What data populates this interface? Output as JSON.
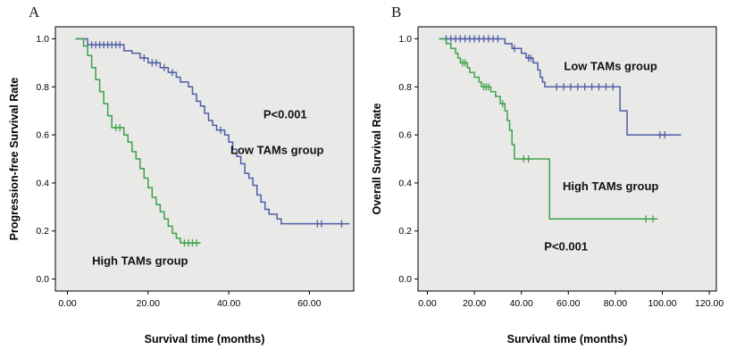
{
  "figure": {
    "description": "Kaplan-Meier survival curves comparing Low and High TAMs groups",
    "plot_background": "#e9e9e7",
    "frame_color": "#000000"
  },
  "chart_data": [
    {
      "type": "line",
      "subtype": "kaplan-meier-step",
      "panel_label": "A",
      "xlabel": "Survival time (months)",
      "ylabel": "Progression-free Survival Rate",
      "xlim": [
        -3,
        71
      ],
      "ylim": [
        -0.05,
        1.05
      ],
      "xticks": [
        0,
        20,
        40,
        60
      ],
      "xtick_labels": [
        "0.00",
        "20.00",
        "40.00",
        "60.00"
      ],
      "yticks": [
        0.0,
        0.2,
        0.4,
        0.6,
        0.8,
        1.0
      ],
      "ytick_labels": [
        "0.0",
        "0.2",
        "0.4",
        "0.6",
        "0.8",
        "1.0"
      ],
      "grid": false,
      "legend_position": "inline-annotations",
      "annotations": [
        {
          "text": "P<0.001",
          "x": 54,
          "y": 0.67
        },
        {
          "text": "Low TAMs group",
          "x": 52,
          "y": 0.52
        },
        {
          "text": "High TAMs group",
          "x": 18,
          "y": 0.06
        }
      ],
      "series": [
        {
          "name": "Low TAMs group",
          "color": "#4e5ea6",
          "points": [
            [
              2,
              1.0
            ],
            [
              5,
              0.975
            ],
            [
              14,
              0.95
            ],
            [
              16,
              0.94
            ],
            [
              18,
              0.92
            ],
            [
              20,
              0.9
            ],
            [
              23,
              0.88
            ],
            [
              25,
              0.86
            ],
            [
              27,
              0.84
            ],
            [
              28,
              0.82
            ],
            [
              30,
              0.8
            ],
            [
              31,
              0.77
            ],
            [
              32,
              0.74
            ],
            [
              33,
              0.72
            ],
            [
              34,
              0.69
            ],
            [
              35,
              0.66
            ],
            [
              36,
              0.64
            ],
            [
              37,
              0.62
            ],
            [
              39,
              0.6
            ],
            [
              40,
              0.57
            ],
            [
              41,
              0.54
            ],
            [
              42,
              0.51
            ],
            [
              43,
              0.48
            ],
            [
              44,
              0.44
            ],
            [
              45,
              0.42
            ],
            [
              46,
              0.39
            ],
            [
              47,
              0.35
            ],
            [
              48,
              0.32
            ],
            [
              49,
              0.29
            ],
            [
              50,
              0.27
            ],
            [
              52,
              0.25
            ],
            [
              53,
              0.23
            ],
            [
              70,
              0.23
            ]
          ],
          "censors": [
            [
              6,
              0.975
            ],
            [
              7,
              0.975
            ],
            [
              8,
              0.975
            ],
            [
              9,
              0.975
            ],
            [
              10,
              0.975
            ],
            [
              11,
              0.975
            ],
            [
              12,
              0.975
            ],
            [
              13,
              0.975
            ],
            [
              19,
              0.92
            ],
            [
              21,
              0.9
            ],
            [
              22,
              0.9
            ],
            [
              24,
              0.88
            ],
            [
              26,
              0.86
            ],
            [
              38,
              0.62
            ],
            [
              62,
              0.23
            ],
            [
              63,
              0.23
            ],
            [
              68,
              0.23
            ]
          ]
        },
        {
          "name": "High TAMs group",
          "color": "#3fa24a",
          "points": [
            [
              2,
              1.0
            ],
            [
              4,
              0.97
            ],
            [
              5,
              0.93
            ],
            [
              6,
              0.88
            ],
            [
              7,
              0.83
            ],
            [
              8,
              0.78
            ],
            [
              9,
              0.73
            ],
            [
              10,
              0.68
            ],
            [
              11,
              0.63
            ],
            [
              14,
              0.6
            ],
            [
              15,
              0.57
            ],
            [
              16,
              0.53
            ],
            [
              17,
              0.5
            ],
            [
              18,
              0.46
            ],
            [
              19,
              0.42
            ],
            [
              20,
              0.38
            ],
            [
              21,
              0.34
            ],
            [
              22,
              0.31
            ],
            [
              23,
              0.28
            ],
            [
              24,
              0.25
            ],
            [
              25,
              0.22
            ],
            [
              26,
              0.19
            ],
            [
              27,
              0.17
            ],
            [
              28,
              0.15
            ],
            [
              33,
              0.15
            ]
          ],
          "censors": [
            [
              12,
              0.63
            ],
            [
              13,
              0.63
            ],
            [
              29,
              0.15
            ],
            [
              30,
              0.15
            ],
            [
              31,
              0.15
            ],
            [
              32,
              0.15
            ]
          ]
        }
      ]
    },
    {
      "type": "line",
      "subtype": "kaplan-meier-step",
      "panel_label": "B",
      "xlabel": "Survival time (months)",
      "ylabel": "Overall Survival Rate",
      "xlim": [
        -4,
        123
      ],
      "ylim": [
        -0.05,
        1.05
      ],
      "xticks": [
        0,
        20,
        40,
        60,
        80,
        100,
        120
      ],
      "xtick_labels": [
        "0.00",
        "20.00",
        "40.00",
        "60.00",
        "80.00",
        "100.00",
        "120.00"
      ],
      "yticks": [
        0.0,
        0.2,
        0.4,
        0.6,
        0.8,
        1.0
      ],
      "ytick_labels": [
        "0.0",
        "0.2",
        "0.4",
        "0.6",
        "0.8",
        "1.0"
      ],
      "grid": false,
      "legend_position": "inline-annotations",
      "annotations": [
        {
          "text": "Low TAMs group",
          "x": 78,
          "y": 0.87
        },
        {
          "text": "High TAMs group",
          "x": 78,
          "y": 0.37
        },
        {
          "text": "P<0.001",
          "x": 59,
          "y": 0.12
        }
      ],
      "series": [
        {
          "name": "Low TAMs group",
          "color": "#4e5ea6",
          "points": [
            [
              5,
              1.0
            ],
            [
              33,
              0.98
            ],
            [
              36,
              0.96
            ],
            [
              40,
              0.94
            ],
            [
              42,
              0.92
            ],
            [
              45,
              0.9
            ],
            [
              47,
              0.87
            ],
            [
              48,
              0.84
            ],
            [
              49,
              0.82
            ],
            [
              50,
              0.8
            ],
            [
              82,
              0.7
            ],
            [
              85,
              0.6
            ],
            [
              108,
              0.6
            ]
          ],
          "censors": [
            [
              8,
              1.0
            ],
            [
              10,
              1.0
            ],
            [
              12,
              1.0
            ],
            [
              14,
              1.0
            ],
            [
              16,
              1.0
            ],
            [
              18,
              1.0
            ],
            [
              20,
              1.0
            ],
            [
              22,
              1.0
            ],
            [
              24,
              1.0
            ],
            [
              26,
              1.0
            ],
            [
              28,
              1.0
            ],
            [
              30,
              1.0
            ],
            [
              37,
              0.96
            ],
            [
              43,
              0.92
            ],
            [
              44,
              0.92
            ],
            [
              55,
              0.8
            ],
            [
              58,
              0.8
            ],
            [
              61,
              0.8
            ],
            [
              64,
              0.8
            ],
            [
              67,
              0.8
            ],
            [
              70,
              0.8
            ],
            [
              73,
              0.8
            ],
            [
              76,
              0.8
            ],
            [
              79,
              0.8
            ],
            [
              99,
              0.6
            ],
            [
              101,
              0.6
            ]
          ]
        },
        {
          "name": "High TAMs group",
          "color": "#3fa24a",
          "points": [
            [
              5,
              1.0
            ],
            [
              8,
              0.98
            ],
            [
              10,
              0.96
            ],
            [
              12,
              0.94
            ],
            [
              13,
              0.92
            ],
            [
              14,
              0.9
            ],
            [
              17,
              0.88
            ],
            [
              18,
              0.86
            ],
            [
              20,
              0.84
            ],
            [
              22,
              0.82
            ],
            [
              23,
              0.8
            ],
            [
              27,
              0.78
            ],
            [
              29,
              0.76
            ],
            [
              31,
              0.73
            ],
            [
              33,
              0.7
            ],
            [
              34,
              0.66
            ],
            [
              35,
              0.62
            ],
            [
              36,
              0.56
            ],
            [
              37,
              0.5
            ],
            [
              52,
              0.25
            ],
            [
              98,
              0.25
            ]
          ],
          "censors": [
            [
              15,
              0.9
            ],
            [
              16,
              0.9
            ],
            [
              24,
              0.8
            ],
            [
              25,
              0.8
            ],
            [
              26,
              0.8
            ],
            [
              32,
              0.73
            ],
            [
              41,
              0.5
            ],
            [
              43,
              0.5
            ],
            [
              93,
              0.25
            ],
            [
              96,
              0.25
            ]
          ]
        }
      ]
    }
  ]
}
